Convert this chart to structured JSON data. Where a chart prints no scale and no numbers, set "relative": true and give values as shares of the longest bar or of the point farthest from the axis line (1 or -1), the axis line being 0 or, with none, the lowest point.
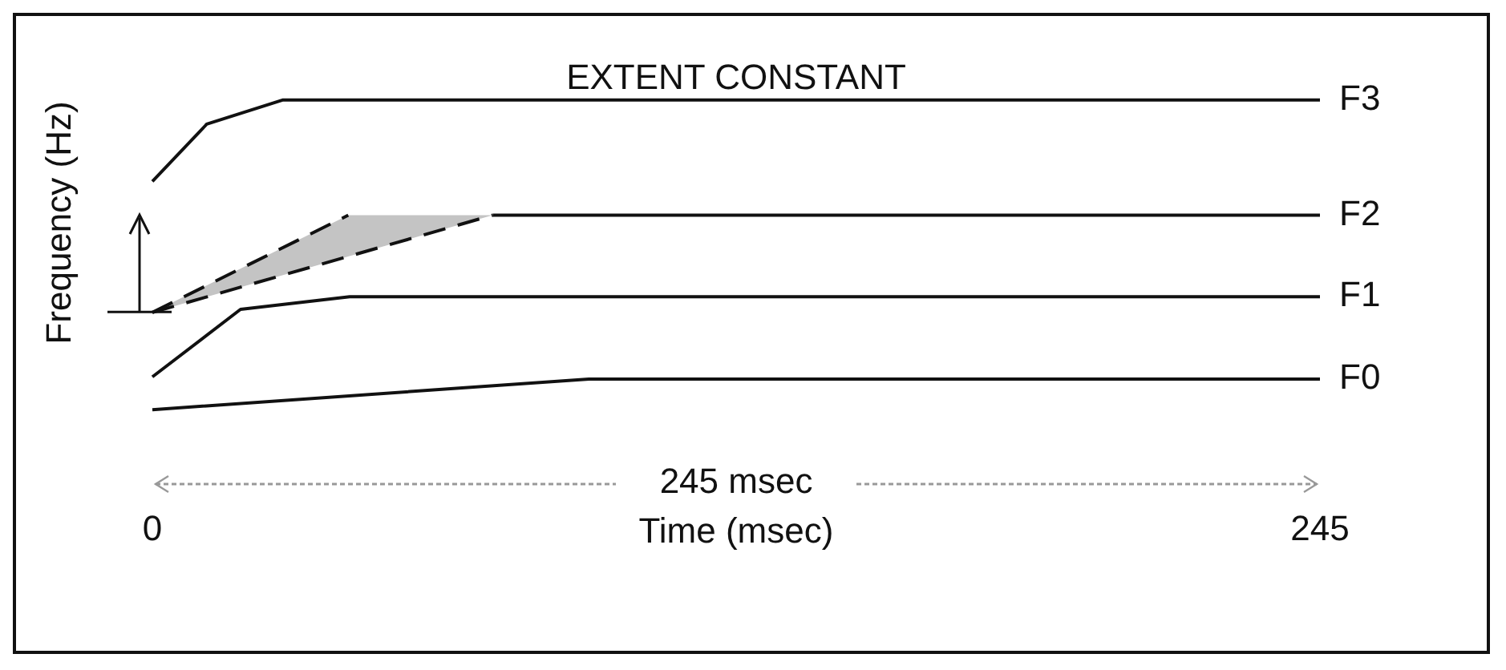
{
  "chart_data": {
    "type": "line",
    "title": "EXTENT CONSTANT",
    "xlabel": "Time (msec)",
    "ylabel": "Frequency (Hz)",
    "annotations": [
      "245 msec"
    ],
    "relative": true,
    "xlim": [
      0,
      245
    ],
    "xticks": [
      0,
      245
    ],
    "marker": "none",
    "line_style": "solid",
    "legend": false,
    "series": [
      {
        "name": "F3",
        "color": "#111111",
        "x": [
          0,
          11.4,
          27.3,
          245
        ],
        "values": [
          0.737,
          0.922,
          1,
          1
        ]
      },
      {
        "name": "F2",
        "color": "#111111",
        "x": [
          71.4,
          245
        ],
        "values": [
          0.628,
          0.628
        ]
      },
      {
        "color": "#111111",
        "line_style": "dashed",
        "x": [
          0,
          41.1
        ],
        "values": [
          0.314,
          0.628
        ]
      },
      {
        "color": "#111111",
        "line_style": "dashed",
        "x": [
          0,
          41.1,
          71.4
        ],
        "values": [
          0.314,
          0.495,
          0.628
        ],
        "lower": [
          0.314,
          0.495,
          0.628
        ],
        "upper": [
          0.314,
          0.628,
          0.628
        ]
      },
      {
        "name": "F1",
        "color": "#111111",
        "x": [
          0,
          18.5,
          41.4,
          245
        ],
        "values": [
          0.106,
          0.324,
          0.365,
          0.365
        ]
      },
      {
        "name": "F0",
        "color": "#111111",
        "x": [
          0,
          91.6,
          245
        ],
        "values": [
          0,
          0.099,
          0.099
        ]
      }
    ]
  }
}
